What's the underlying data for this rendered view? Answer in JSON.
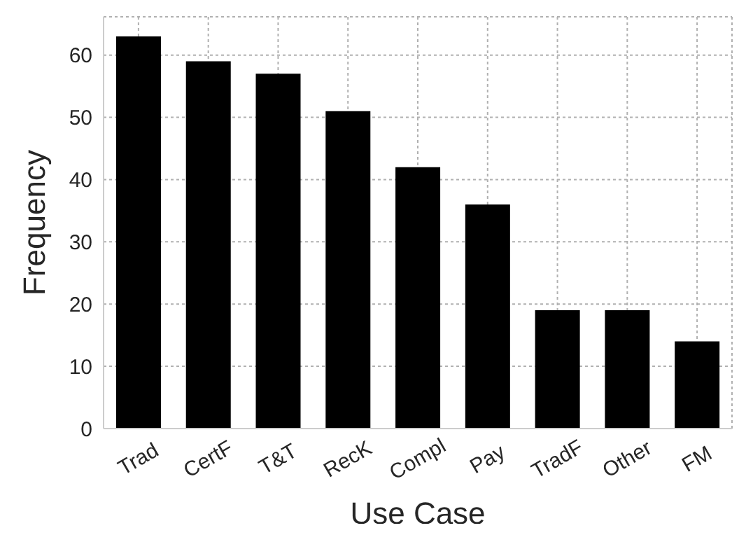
{
  "chart_data": {
    "type": "bar",
    "xlabel": "Use Case",
    "ylabel": "Frequency",
    "categories": [
      "Trad",
      "CertF",
      "T&T",
      "RecK",
      "Compl",
      "Pay",
      "TradF",
      "Other",
      "FM"
    ],
    "values": [
      63,
      59,
      57,
      51,
      42,
      36,
      19,
      19,
      14
    ],
    "color": "#000000",
    "ylim": [
      0,
      66.15
    ],
    "yticks": [
      0,
      10,
      20,
      30,
      40,
      50,
      60
    ],
    "grid": true
  }
}
